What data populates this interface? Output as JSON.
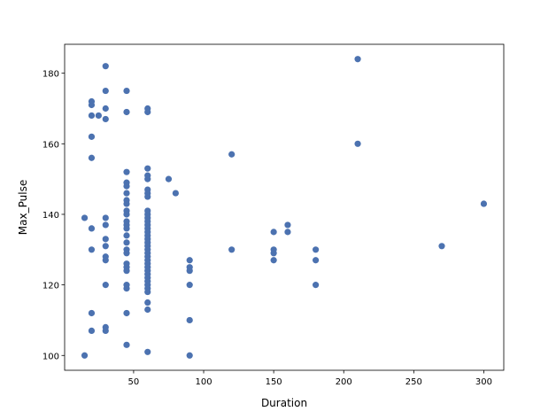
{
  "chart_data": {
    "type": "scatter",
    "xlabel": "Duration",
    "ylabel": "Max_Pulse",
    "xlim": [
      0.75,
      314.25
    ],
    "ylim": [
      95.8,
      188.2
    ],
    "xticks": [
      50,
      100,
      150,
      200,
      250,
      300
    ],
    "yticks": [
      100,
      120,
      140,
      160,
      180
    ],
    "grid": false,
    "color": "#4c72b0",
    "points": [
      [
        15,
        139
      ],
      [
        15,
        100
      ],
      [
        20,
        172
      ],
      [
        20,
        171
      ],
      [
        20,
        168
      ],
      [
        20,
        162
      ],
      [
        20,
        156
      ],
      [
        20,
        136
      ],
      [
        20,
        130
      ],
      [
        20,
        112
      ],
      [
        20,
        107
      ],
      [
        25,
        168
      ],
      [
        30,
        182
      ],
      [
        30,
        175
      ],
      [
        30,
        170
      ],
      [
        30,
        167
      ],
      [
        30,
        139
      ],
      [
        30,
        137
      ],
      [
        30,
        133
      ],
      [
        30,
        131
      ],
      [
        30,
        128
      ],
      [
        30,
        127
      ],
      [
        30,
        120
      ],
      [
        30,
        108
      ],
      [
        30,
        107
      ],
      [
        45,
        175
      ],
      [
        45,
        169
      ],
      [
        45,
        152
      ],
      [
        45,
        149
      ],
      [
        45,
        148
      ],
      [
        45,
        146
      ],
      [
        45,
        144
      ],
      [
        45,
        143
      ],
      [
        45,
        141
      ],
      [
        45,
        140
      ],
      [
        45,
        138
      ],
      [
        45,
        137
      ],
      [
        45,
        136
      ],
      [
        45,
        134
      ],
      [
        45,
        132
      ],
      [
        45,
        130
      ],
      [
        45,
        129
      ],
      [
        45,
        126
      ],
      [
        45,
        125
      ],
      [
        45,
        124
      ],
      [
        45,
        120
      ],
      [
        45,
        119
      ],
      [
        45,
        112
      ],
      [
        45,
        103
      ],
      [
        60,
        170
      ],
      [
        60,
        169
      ],
      [
        60,
        153
      ],
      [
        60,
        151
      ],
      [
        60,
        150
      ],
      [
        60,
        147
      ],
      [
        60,
        146
      ],
      [
        60,
        145
      ],
      [
        60,
        141
      ],
      [
        60,
        140
      ],
      [
        60,
        139
      ],
      [
        60,
        138
      ],
      [
        60,
        137
      ],
      [
        60,
        136
      ],
      [
        60,
        135
      ],
      [
        60,
        134
      ],
      [
        60,
        133
      ],
      [
        60,
        132
      ],
      [
        60,
        131
      ],
      [
        60,
        130
      ],
      [
        60,
        129
      ],
      [
        60,
        128
      ],
      [
        60,
        127
      ],
      [
        60,
        126
      ],
      [
        60,
        125
      ],
      [
        60,
        124
      ],
      [
        60,
        123
      ],
      [
        60,
        122
      ],
      [
        60,
        121
      ],
      [
        60,
        120
      ],
      [
        60,
        119
      ],
      [
        60,
        118
      ],
      [
        60,
        115
      ],
      [
        60,
        113
      ],
      [
        60,
        101
      ],
      [
        75,
        150
      ],
      [
        80,
        146
      ],
      [
        90,
        127
      ],
      [
        90,
        125
      ],
      [
        90,
        124
      ],
      [
        90,
        120
      ],
      [
        90,
        110
      ],
      [
        90,
        100
      ],
      [
        120,
        157
      ],
      [
        120,
        130
      ],
      [
        150,
        135
      ],
      [
        150,
        130
      ],
      [
        150,
        129
      ],
      [
        150,
        127
      ],
      [
        160,
        137
      ],
      [
        160,
        135
      ],
      [
        180,
        130
      ],
      [
        180,
        127
      ],
      [
        180,
        120
      ],
      [
        210,
        184
      ],
      [
        210,
        160
      ],
      [
        270,
        131
      ],
      [
        300,
        143
      ]
    ]
  }
}
